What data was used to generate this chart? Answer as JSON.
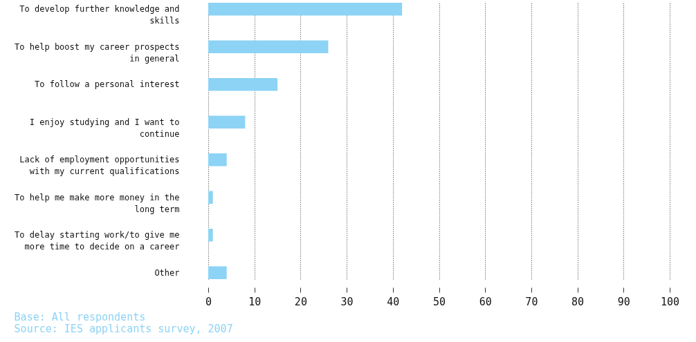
{
  "chart_data": {
    "type": "bar",
    "orientation": "horizontal",
    "categories": [
      "To develop further knowledge and skills",
      "To help boost my career prospects in general",
      "To follow a personal interest",
      "I enjoy studying and I want to continue",
      "Lack of employment opportunities with my current qualifications",
      "To help me make more money in the long term",
      "To delay starting work/to give me more time to decide on a career",
      "Other"
    ],
    "values": [
      42,
      26,
      15,
      8,
      4,
      1,
      1,
      4
    ],
    "color": "#8dd3f5",
    "xlim": [
      0,
      100
    ],
    "xticks": [
      0,
      10,
      20,
      30,
      40,
      50,
      60,
      70,
      80,
      90,
      100
    ],
    "grid": "x",
    "annotations": [
      "Base: All respondents",
      "Source: IES applicants survey, 2007"
    ]
  }
}
